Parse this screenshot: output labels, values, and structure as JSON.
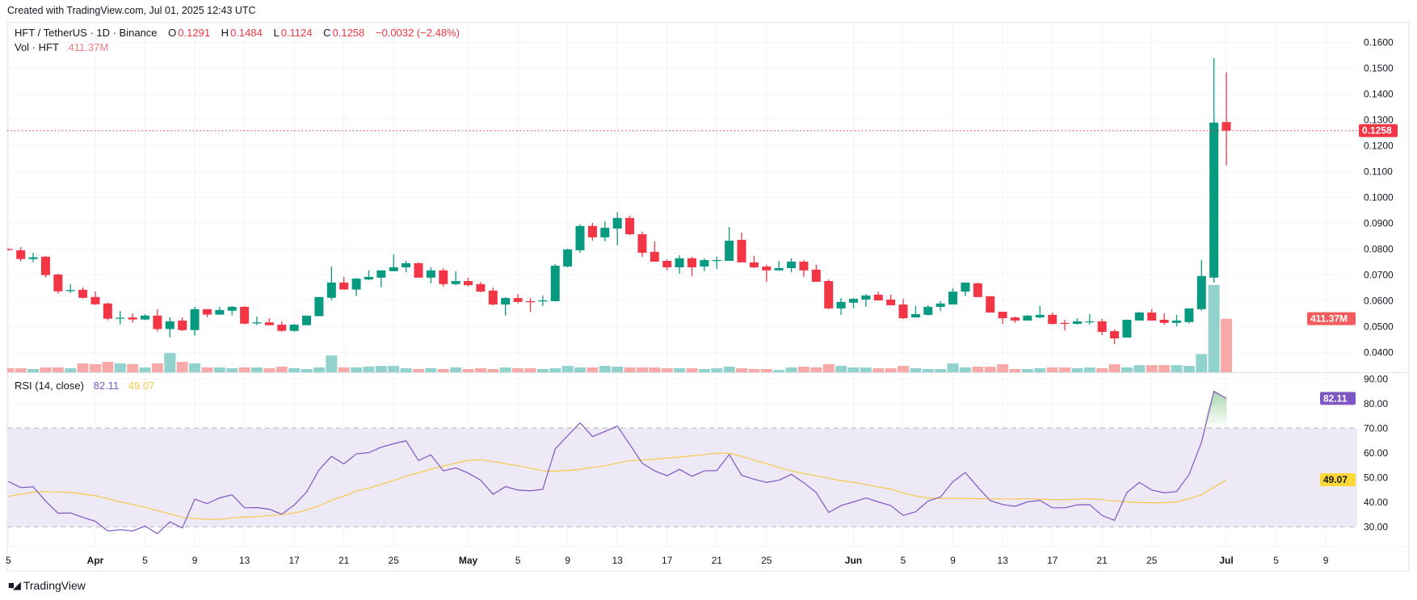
{
  "header": {
    "created": "Created with TradingView.com, Jul 01, 2025 12:43 UTC"
  },
  "legend": {
    "symbol": "HFT / TetherUS · 1D · Binance",
    "o_label": "O",
    "o": "0.1291",
    "h_label": "H",
    "h": "0.1484",
    "l_label": "L",
    "l": "0.1124",
    "c_label": "C",
    "c": "0.1258",
    "change": "−0.0032 (−2.48%)",
    "vol_label": "Vol · HFT",
    "vol": "411.37M"
  },
  "rsi_legend": {
    "label": "RSI (14, close)",
    "rsi": "82.11",
    "ma": "49.07"
  },
  "footer": {
    "brand": "TradingView"
  },
  "colors": {
    "up": "#089981",
    "down": "#f23645",
    "vol_up": "#92d2cc",
    "vol_down": "#f7a9a7",
    "rsi": "#7e57c2",
    "rsi_ma": "#f7c948",
    "band": "#ede9f7"
  },
  "chart_data": {
    "type": "candlestick",
    "title": "HFT / TetherUS · 1D · Binance",
    "price_axis": {
      "ticks": [
        "0.1600",
        "0.1500",
        "0.1400",
        "0.1300",
        "0.1200",
        "0.1100",
        "0.1000",
        "0.0900",
        "0.0800",
        "0.0700",
        "0.0600",
        "0.0500",
        "0.0400"
      ],
      "last_price": "0.1258",
      "last_volume": "411.37M"
    },
    "rsi_axis": {
      "ticks": [
        "90.00",
        "80.00",
        "70.00",
        "60.00",
        "50.00",
        "40.00",
        "30.00"
      ],
      "band": [
        30,
        70
      ],
      "mid": 50,
      "last_rsi": "82.11",
      "last_ma": "49.07"
    },
    "time_axis": [
      {
        "date": "2025-03-25",
        "label": "5"
      },
      {
        "date": "2025-04-01",
        "label": "Apr"
      },
      {
        "date": "2025-04-05",
        "label": "5"
      },
      {
        "date": "2025-04-09",
        "label": "9"
      },
      {
        "date": "2025-04-13",
        "label": "13"
      },
      {
        "date": "2025-04-17",
        "label": "17"
      },
      {
        "date": "2025-04-21",
        "label": "21"
      },
      {
        "date": "2025-04-25",
        "label": "25"
      },
      {
        "date": "2025-05-01",
        "label": "May"
      },
      {
        "date": "2025-05-05",
        "label": "5"
      },
      {
        "date": "2025-05-09",
        "label": "9"
      },
      {
        "date": "2025-05-13",
        "label": "13"
      },
      {
        "date": "2025-05-17",
        "label": "17"
      },
      {
        "date": "2025-05-21",
        "label": "21"
      },
      {
        "date": "2025-05-25",
        "label": "25"
      },
      {
        "date": "2025-06-01",
        "label": "Jun"
      },
      {
        "date": "2025-06-05",
        "label": "5"
      },
      {
        "date": "2025-06-09",
        "label": "9"
      },
      {
        "date": "2025-06-13",
        "label": "13"
      },
      {
        "date": "2025-06-17",
        "label": "17"
      },
      {
        "date": "2025-06-21",
        "label": "21"
      },
      {
        "date": "2025-06-25",
        "label": "25"
      },
      {
        "date": "2025-07-01",
        "label": "Jul"
      },
      {
        "date": "2025-07-05",
        "label": "5"
      },
      {
        "date": "2025-07-09",
        "label": "9"
      }
    ],
    "candle_fields": [
      "date",
      "open",
      "high",
      "low",
      "close",
      "volume_M"
    ],
    "candles": [
      [
        "2025-03-25",
        0.08,
        0.0802,
        0.0794,
        0.0796,
        31
      ],
      [
        "2025-03-26",
        0.0795,
        0.0807,
        0.0752,
        0.0761,
        31
      ],
      [
        "2025-03-27",
        0.0761,
        0.0785,
        0.0749,
        0.0768,
        25
      ],
      [
        "2025-03-28",
        0.077,
        0.0773,
        0.069,
        0.0699,
        37
      ],
      [
        "2025-03-29",
        0.0701,
        0.0704,
        0.0627,
        0.0636,
        37
      ],
      [
        "2025-03-30",
        0.064,
        0.0664,
        0.063,
        0.0641,
        31
      ],
      [
        "2025-03-31",
        0.0642,
        0.0651,
        0.0608,
        0.0611,
        68
      ],
      [
        "2025-04-01",
        0.0614,
        0.0636,
        0.0583,
        0.0586,
        62
      ],
      [
        "2025-04-02",
        0.0589,
        0.0592,
        0.0524,
        0.053,
        80
      ],
      [
        "2025-04-03",
        0.0533,
        0.056,
        0.0508,
        0.0534,
        68
      ],
      [
        "2025-04-04",
        0.0535,
        0.0551,
        0.0515,
        0.0527,
        62
      ],
      [
        "2025-04-05",
        0.0527,
        0.0548,
        0.0524,
        0.0542,
        37
      ],
      [
        "2025-04-06",
        0.0542,
        0.0567,
        0.048,
        0.049,
        68
      ],
      [
        "2025-04-07",
        0.049,
        0.0535,
        0.0458,
        0.052,
        148
      ],
      [
        "2025-04-08",
        0.0523,
        0.0535,
        0.0483,
        0.0486,
        80
      ],
      [
        "2025-04-09",
        0.0486,
        0.0576,
        0.0465,
        0.0567,
        68
      ],
      [
        "2025-04-10",
        0.0567,
        0.0567,
        0.0536,
        0.0546,
        37
      ],
      [
        "2025-04-11",
        0.0546,
        0.0576,
        0.0546,
        0.0564,
        37
      ],
      [
        "2025-04-12",
        0.0561,
        0.0579,
        0.0543,
        0.0576,
        31
      ],
      [
        "2025-04-13",
        0.0576,
        0.0579,
        0.0508,
        0.0511,
        37
      ],
      [
        "2025-04-14",
        0.0515,
        0.0539,
        0.0505,
        0.0516,
        37
      ],
      [
        "2025-04-15",
        0.0516,
        0.0532,
        0.0505,
        0.0505,
        31
      ],
      [
        "2025-04-16",
        0.0507,
        0.052,
        0.048,
        0.0483,
        43
      ],
      [
        "2025-04-17",
        0.0483,
        0.051,
        0.048,
        0.0507,
        31
      ],
      [
        "2025-04-18",
        0.0505,
        0.0542,
        0.0505,
        0.0542,
        25
      ],
      [
        "2025-04-19",
        0.054,
        0.0614,
        0.054,
        0.0614,
        37
      ],
      [
        "2025-04-20",
        0.0611,
        0.0732,
        0.0602,
        0.067,
        129
      ],
      [
        "2025-04-21",
        0.067,
        0.0692,
        0.0643,
        0.0643,
        37
      ],
      [
        "2025-04-22",
        0.0643,
        0.0688,
        0.0618,
        0.0685,
        37
      ],
      [
        "2025-04-23",
        0.0682,
        0.0717,
        0.0679,
        0.0692,
        43
      ],
      [
        "2025-04-24",
        0.0689,
        0.0717,
        0.0651,
        0.0717,
        49
      ],
      [
        "2025-04-25",
        0.0714,
        0.0779,
        0.0714,
        0.0729,
        49
      ],
      [
        "2025-04-26",
        0.0729,
        0.0754,
        0.071,
        0.0745,
        31
      ],
      [
        "2025-04-27",
        0.0745,
        0.0748,
        0.0689,
        0.0689,
        25
      ],
      [
        "2025-04-28",
        0.0689,
        0.0729,
        0.0667,
        0.0717,
        31
      ],
      [
        "2025-04-29",
        0.0717,
        0.0726,
        0.0654,
        0.0664,
        25
      ],
      [
        "2025-04-30",
        0.0664,
        0.0714,
        0.066,
        0.0676,
        37
      ],
      [
        "2025-05-01",
        0.0676,
        0.0689,
        0.0654,
        0.066,
        25
      ],
      [
        "2025-05-02",
        0.0664,
        0.0673,
        0.0632,
        0.0635,
        31
      ],
      [
        "2025-05-03",
        0.0639,
        0.0651,
        0.0582,
        0.0585,
        25
      ],
      [
        "2025-05-04",
        0.0585,
        0.0614,
        0.0542,
        0.061,
        37
      ],
      [
        "2025-05-05",
        0.061,
        0.0626,
        0.0589,
        0.0595,
        31
      ],
      [
        "2025-05-06",
        0.0598,
        0.061,
        0.0557,
        0.0596,
        31
      ],
      [
        "2025-05-07",
        0.0599,
        0.062,
        0.0579,
        0.0601,
        25
      ],
      [
        "2025-05-08",
        0.0598,
        0.0742,
        0.0598,
        0.0735,
        31
      ],
      [
        "2025-05-09",
        0.0732,
        0.0801,
        0.0729,
        0.0798,
        49
      ],
      [
        "2025-05-10",
        0.0795,
        0.0895,
        0.0785,
        0.0889,
        37
      ],
      [
        "2025-05-11",
        0.0889,
        0.0901,
        0.0832,
        0.0845,
        37
      ],
      [
        "2025-05-12",
        0.0845,
        0.0907,
        0.0829,
        0.0882,
        49
      ],
      [
        "2025-05-13",
        0.0879,
        0.0942,
        0.0814,
        0.092,
        43
      ],
      [
        "2025-05-14",
        0.092,
        0.0929,
        0.0854,
        0.0857,
        37
      ],
      [
        "2025-05-15",
        0.0857,
        0.0867,
        0.077,
        0.0785,
        37
      ],
      [
        "2025-05-16",
        0.0789,
        0.0829,
        0.0751,
        0.0751,
        37
      ],
      [
        "2025-05-17",
        0.0754,
        0.076,
        0.0717,
        0.0729,
        31
      ],
      [
        "2025-05-18",
        0.0729,
        0.0776,
        0.0704,
        0.0764,
        31
      ],
      [
        "2025-05-19",
        0.0764,
        0.077,
        0.0695,
        0.0729,
        31
      ],
      [
        "2025-05-20",
        0.0732,
        0.0764,
        0.0714,
        0.0757,
        25
      ],
      [
        "2025-05-21",
        0.0756,
        0.077,
        0.0723,
        0.0757,
        31
      ],
      [
        "2025-05-22",
        0.0754,
        0.0885,
        0.0754,
        0.0832,
        43
      ],
      [
        "2025-05-23",
        0.0835,
        0.0864,
        0.0748,
        0.0748,
        31
      ],
      [
        "2025-05-24",
        0.0748,
        0.0773,
        0.0726,
        0.0729,
        25
      ],
      [
        "2025-05-25",
        0.0732,
        0.0739,
        0.0673,
        0.0717,
        25
      ],
      [
        "2025-05-26",
        0.0717,
        0.0754,
        0.0717,
        0.0726,
        18
      ],
      [
        "2025-05-27",
        0.0726,
        0.0764,
        0.071,
        0.0751,
        37
      ],
      [
        "2025-05-28",
        0.0751,
        0.0757,
        0.0692,
        0.0717,
        43
      ],
      [
        "2025-05-29",
        0.072,
        0.0739,
        0.0673,
        0.0673,
        37
      ],
      [
        "2025-05-30",
        0.0676,
        0.0682,
        0.0567,
        0.057,
        62
      ],
      [
        "2025-05-31",
        0.057,
        0.061,
        0.0545,
        0.0595,
        49
      ],
      [
        "2025-06-01",
        0.0592,
        0.061,
        0.057,
        0.0607,
        37
      ],
      [
        "2025-06-02",
        0.0604,
        0.0626,
        0.0576,
        0.062,
        37
      ],
      [
        "2025-06-03",
        0.0623,
        0.0635,
        0.0601,
        0.0601,
        31
      ],
      [
        "2025-06-04",
        0.0604,
        0.0623,
        0.0582,
        0.0582,
        31
      ],
      [
        "2025-06-05",
        0.0585,
        0.0607,
        0.0529,
        0.0532,
        49
      ],
      [
        "2025-06-06",
        0.0535,
        0.0579,
        0.0535,
        0.0548,
        31
      ],
      [
        "2025-06-07",
        0.0545,
        0.0582,
        0.0542,
        0.0576,
        25
      ],
      [
        "2025-06-08",
        0.0576,
        0.0598,
        0.056,
        0.0589,
        25
      ],
      [
        "2025-06-09",
        0.0585,
        0.0648,
        0.0585,
        0.0635,
        68
      ],
      [
        "2025-06-10",
        0.0635,
        0.067,
        0.0617,
        0.067,
        37
      ],
      [
        "2025-06-11",
        0.0667,
        0.067,
        0.0614,
        0.0614,
        43
      ],
      [
        "2025-06-12",
        0.0617,
        0.0617,
        0.0554,
        0.0554,
        43
      ],
      [
        "2025-06-13",
        0.0557,
        0.0557,
        0.051,
        0.0532,
        62
      ],
      [
        "2025-06-14",
        0.0535,
        0.0538,
        0.0514,
        0.0523,
        25
      ],
      [
        "2025-06-15",
        0.0523,
        0.0545,
        0.0523,
        0.0542,
        25
      ],
      [
        "2025-06-16",
        0.0535,
        0.058,
        0.0532,
        0.0545,
        31
      ],
      [
        "2025-06-17",
        0.0545,
        0.0554,
        0.0507,
        0.051,
        37
      ],
      [
        "2025-06-18",
        0.0514,
        0.0526,
        0.0485,
        0.0512,
        37
      ],
      [
        "2025-06-19",
        0.051,
        0.0532,
        0.0507,
        0.052,
        31
      ],
      [
        "2025-06-20",
        0.0519,
        0.0548,
        0.0507,
        0.052,
        37
      ],
      [
        "2025-06-21",
        0.052,
        0.0529,
        0.0467,
        0.0479,
        31
      ],
      [
        "2025-06-22",
        0.0482,
        0.0489,
        0.0432,
        0.0454,
        62
      ],
      [
        "2025-06-23",
        0.0457,
        0.0526,
        0.0457,
        0.0526,
        37
      ],
      [
        "2025-06-24",
        0.0523,
        0.0557,
        0.0523,
        0.0554,
        55
      ],
      [
        "2025-06-25",
        0.0554,
        0.0567,
        0.0523,
        0.0523,
        55
      ],
      [
        "2025-06-26",
        0.0526,
        0.0551,
        0.0507,
        0.0514,
        55
      ],
      [
        "2025-06-27",
        0.0514,
        0.0545,
        0.0501,
        0.0523,
        55
      ],
      [
        "2025-06-28",
        0.0517,
        0.057,
        0.0511,
        0.057,
        49
      ],
      [
        "2025-06-29",
        0.0567,
        0.0757,
        0.0561,
        0.0695,
        141
      ],
      [
        "2025-06-30",
        0.0689,
        0.1539,
        0.067,
        0.1289,
        670
      ],
      [
        "2025-07-01",
        0.1291,
        0.1484,
        0.1124,
        0.1258,
        411.37
      ]
    ],
    "rsi": [
      48.4,
      45.9,
      46.2,
      40.4,
      35.5,
      35.6,
      33.8,
      32.2,
      28.3,
      28.8,
      28.3,
      30.3,
      27.2,
      32.0,
      29.5,
      41.2,
      39.4,
      41.7,
      43.0,
      37.7,
      37.8,
      37.1,
      35.1,
      38.8,
      44.1,
      53.1,
      58.6,
      55.5,
      59.6,
      60.1,
      62.3,
      63.7,
      64.9,
      56.9,
      59.2,
      52.7,
      53.9,
      51.8,
      48.9,
      43.2,
      46.3,
      44.9,
      44.6,
      45.2,
      61.6,
      66.9,
      72.2,
      66.6,
      68.7,
      70.9,
      63.4,
      55.8,
      52.7,
      50.7,
      53.3,
      50.5,
      52.7,
      52.8,
      59.3,
      50.9,
      49.3,
      48.0,
      48.9,
      51.3,
      47.9,
      43.9,
      35.8,
      38.6,
      40.1,
      41.7,
      40.1,
      38.6,
      34.6,
      36.1,
      40.4,
      42.1,
      48.3,
      52.0,
      46.1,
      40.6,
      39.0,
      38.3,
      40.1,
      40.7,
      37.7,
      37.7,
      38.9,
      39.0,
      34.6,
      32.6,
      43.9,
      48.0,
      44.9,
      43.8,
      44.3,
      51.2,
      64.3,
      85.0,
      82.11
    ],
    "rsi_ma": [
      42.3,
      43.2,
      44.0,
      44.3,
      44.1,
      43.9,
      43.3,
      42.6,
      41.4,
      40.1,
      39.0,
      37.9,
      36.5,
      35.2,
      33.8,
      33.4,
      33.0,
      33.0,
      33.6,
      33.9,
      34.1,
      34.5,
      35.0,
      35.6,
      36.8,
      38.5,
      40.7,
      42.4,
      44.5,
      45.7,
      47.2,
      48.8,
      50.5,
      51.9,
      53.4,
      54.6,
      55.8,
      57.0,
      57.2,
      56.5,
      55.6,
      54.8,
      53.8,
      52.7,
      52.6,
      52.8,
      53.3,
      54.1,
      54.7,
      55.9,
      56.8,
      57.0,
      57.4,
      57.9,
      58.3,
      58.8,
      59.3,
      59.9,
      59.8,
      58.6,
      57.0,
      55.6,
      54.1,
      52.7,
      51.6,
      50.7,
      49.7,
      48.7,
      48.0,
      47.2,
      46.1,
      45.3,
      43.6,
      42.5,
      41.7,
      41.5,
      41.5,
      41.5,
      41.4,
      41.3,
      41.3,
      41.3,
      41.3,
      41.2,
      41.0,
      41.0,
      41.2,
      41.4,
      41.0,
      40.4,
      40.1,
      39.8,
      39.7,
      39.8,
      40.1,
      41.4,
      43.0,
      46.1,
      49.07
    ]
  }
}
